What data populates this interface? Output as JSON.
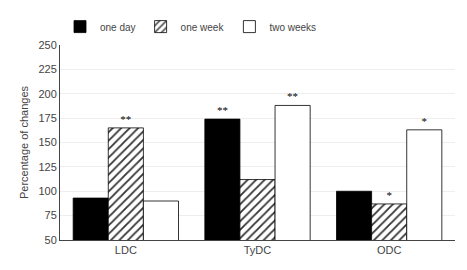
{
  "chart_data": {
    "type": "bar",
    "categories": [
      "LDC",
      "TyDC",
      "ODC"
    ],
    "series": [
      {
        "name": "one day",
        "color": "black",
        "values": [
          93,
          174,
          100
        ]
      },
      {
        "name": "one week",
        "color": "white",
        "marker": "hatched",
        "values": [
          165,
          112,
          87
        ]
      },
      {
        "name": "two weeks",
        "color": "white",
        "values": [
          90,
          188,
          163
        ]
      }
    ],
    "annotations": [
      {
        "category": "LDC",
        "series": "one week",
        "text": "**"
      },
      {
        "category": "TyDC",
        "series": "one day",
        "text": "**"
      },
      {
        "category": "TyDC",
        "series": "two weeks",
        "text": "**"
      },
      {
        "category": "ODC",
        "series": "one week",
        "text": "*"
      },
      {
        "category": "ODC",
        "series": "two weeks",
        "text": "*"
      }
    ],
    "y_label": "Percentage of changes",
    "ylim": [
      50,
      250
    ],
    "yticks": [
      50,
      75,
      100,
      125,
      150,
      175,
      200,
      225,
      250
    ],
    "grid": true,
    "legend": "top left"
  }
}
